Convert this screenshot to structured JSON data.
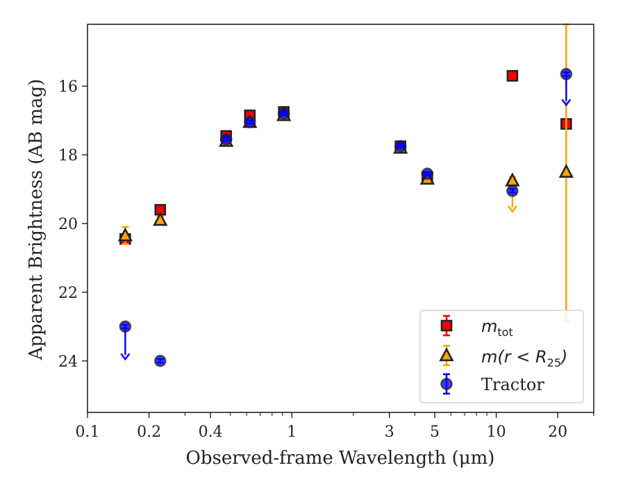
{
  "chart_data": {
    "type": "scatter",
    "title": "",
    "xlabel": "Observed-frame Wavelength (μm)",
    "ylabel": "Apparent Brightness (AB mag)",
    "xscale": "log",
    "xlim": [
      0.1,
      30
    ],
    "ylim": [
      25.5,
      14.2
    ],
    "y_inverted": true,
    "x_ticks": [
      {
        "value": 0.1,
        "label": "0.1"
      },
      {
        "value": 0.2,
        "label": "0.2"
      },
      {
        "value": 0.4,
        "label": "0.4"
      },
      {
        "value": 1,
        "label": "1"
      },
      {
        "value": 3,
        "label": "3"
      },
      {
        "value": 5,
        "label": "5"
      },
      {
        "value": 10,
        "label": "10"
      },
      {
        "value": 20,
        "label": "20"
      }
    ],
    "y_ticks": [
      {
        "value": 16,
        "label": "16"
      },
      {
        "value": 18,
        "label": "18"
      },
      {
        "value": 20,
        "label": "20"
      },
      {
        "value": 22,
        "label": "22"
      },
      {
        "value": 24,
        "label": "24"
      }
    ],
    "grid": false,
    "legend_position": "bottom-right",
    "series": [
      {
        "legend_label": "m_tot",
        "marker": "square",
        "color": "#ff0000",
        "edge_color": "#222222",
        "points": [
          {
            "x": 0.153,
            "y": 20.45,
            "yerr": 0.1
          },
          {
            "x": 0.227,
            "y": 19.6,
            "yerr": 0.1
          },
          {
            "x": 0.477,
            "y": 17.45,
            "yerr": 0.1
          },
          {
            "x": 0.623,
            "y": 16.85,
            "yerr": 0.1
          },
          {
            "x": 0.913,
            "y": 16.75,
            "yerr": 0.1
          },
          {
            "x": 3.4,
            "y": 17.75,
            "yerr": 0.1
          },
          {
            "x": 4.6,
            "y": 18.65,
            "yerr": 0.1
          },
          {
            "x": 12.0,
            "y": 15.7,
            "yerr": 0.1
          },
          {
            "x": 22.0,
            "y": 17.1,
            "yerr": 0.1
          }
        ]
      },
      {
        "legend_label": "m(r<R_25)",
        "marker": "triangle",
        "color": "#ffa500",
        "edge_color": "#222222",
        "points": [
          {
            "x": 0.153,
            "y": 20.35,
            "yerr": 0.25
          },
          {
            "x": 0.227,
            "y": 19.9,
            "yerr": 0.1
          },
          {
            "x": 0.477,
            "y": 17.6,
            "yerr": 0.1
          },
          {
            "x": 0.623,
            "y": 17.05,
            "yerr": 0.1
          },
          {
            "x": 0.913,
            "y": 16.85,
            "yerr": 0.1
          },
          {
            "x": 3.4,
            "y": 17.8,
            "yerr": 0.1
          },
          {
            "x": 4.6,
            "y": 18.7,
            "yerr": 0.1
          },
          {
            "x": 12.0,
            "y": 18.75,
            "yerr": 0.1,
            "upper_limit_arrow": 19.65
          },
          {
            "x": 22.0,
            "y": 18.5,
            "yerr_low": 4.35,
            "yerr_high": 4.3
          }
        ]
      },
      {
        "legend_label": "Tractor",
        "marker": "circle",
        "color": "#0000ff",
        "edge_color": "#222222",
        "points": [
          {
            "x": 0.153,
            "y": 23.0,
            "yerr": 0.05,
            "upper_limit_arrow": 23.95
          },
          {
            "x": 0.227,
            "y": 24.0,
            "yerr": 0.05
          },
          {
            "x": 0.477,
            "y": 17.55,
            "yerr": 0.05
          },
          {
            "x": 0.623,
            "y": 17.05,
            "yerr": 0.05
          },
          {
            "x": 0.913,
            "y": 16.8,
            "yerr": 0.05
          },
          {
            "x": 3.4,
            "y": 17.75,
            "yerr": 0.05
          },
          {
            "x": 4.6,
            "y": 18.55,
            "yerr": 0.05
          },
          {
            "x": 12.0,
            "y": 19.05,
            "yerr": 0.05
          },
          {
            "x": 22.0,
            "y": 15.65,
            "yerr": 0.05,
            "upper_limit_arrow": 16.55
          }
        ]
      }
    ]
  },
  "legend": {
    "items": [
      {
        "main": "m",
        "sub": "tot",
        "tail": ""
      },
      {
        "main": "m(r < R",
        "sub": "25",
        "tail": ")"
      },
      {
        "main": "Tractor",
        "sub": "",
        "tail": ""
      }
    ]
  }
}
